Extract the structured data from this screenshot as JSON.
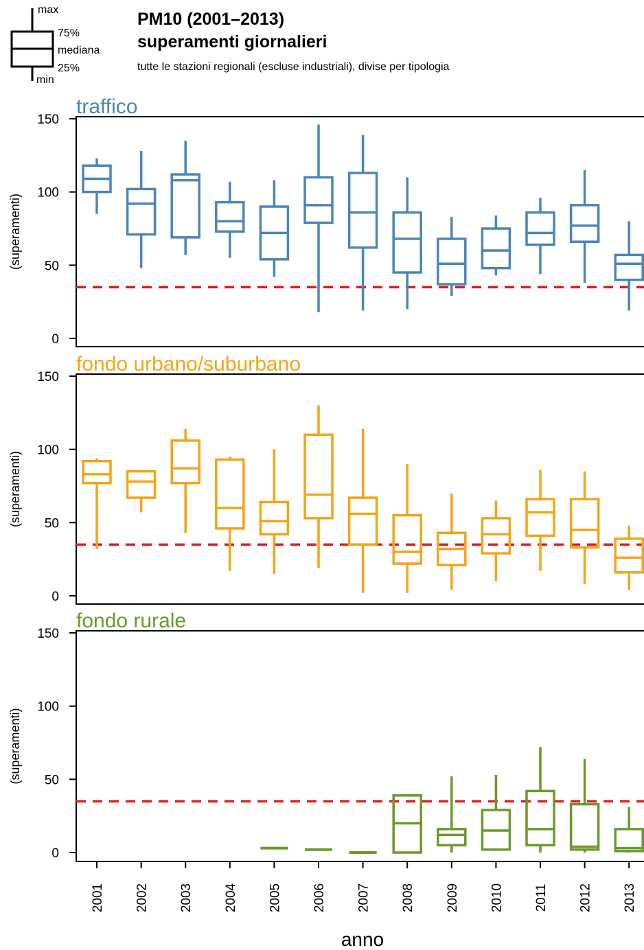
{
  "title_line1": "PM10 (2001–2013)",
  "title_line2": "superamenti giornalieri",
  "subtitle": "tutte le stazioni regionali (escluse industriali), divise per tipologia",
  "legend": {
    "max": "max",
    "q75": "75%",
    "median": "mediana",
    "q25": "25%",
    "min": "min"
  },
  "chart_data": {
    "type": "boxplot",
    "xlabel": "anno",
    "ylabel": "(superamenti)",
    "ylim": [
      0,
      150
    ],
    "yticks": [
      0,
      50,
      100,
      150
    ],
    "categories": [
      "2001",
      "2002",
      "2003",
      "2004",
      "2005",
      "2006",
      "2007",
      "2008",
      "2009",
      "2010",
      "2011",
      "2012",
      "2013"
    ],
    "limit_line": {
      "value": 35,
      "color": "#dd1c1c",
      "style": "dashed"
    },
    "panels": [
      {
        "name": "traffico",
        "color": "#4a86b8",
        "boxes": [
          {
            "min": 85,
            "q1": 100,
            "median": 109,
            "q3": 118,
            "max": 123
          },
          {
            "min": 48,
            "q1": 71,
            "median": 92,
            "q3": 102,
            "max": 128
          },
          {
            "min": 57,
            "q1": 69,
            "median": 108,
            "q3": 112,
            "max": 135
          },
          {
            "min": 55,
            "q1": 73,
            "median": 80,
            "q3": 93,
            "max": 107
          },
          {
            "min": 42,
            "q1": 54,
            "median": 72,
            "q3": 90,
            "max": 108
          },
          {
            "min": 18,
            "q1": 79,
            "median": 91,
            "q3": 110,
            "max": 146
          },
          {
            "min": 19,
            "q1": 62,
            "median": 86,
            "q3": 113,
            "max": 139
          },
          {
            "min": 20,
            "q1": 45,
            "median": 68,
            "q3": 86,
            "max": 110
          },
          {
            "min": 29,
            "q1": 37,
            "median": 51,
            "q3": 68,
            "max": 83
          },
          {
            "min": 43,
            "q1": 48,
            "median": 60,
            "q3": 75,
            "max": 84
          },
          {
            "min": 44,
            "q1": 64,
            "median": 72,
            "q3": 86,
            "max": 96
          },
          {
            "min": 38,
            "q1": 66,
            "median": 77,
            "q3": 91,
            "max": 115
          },
          {
            "min": 19,
            "q1": 40,
            "median": 51,
            "q3": 57,
            "max": 80
          }
        ]
      },
      {
        "name": "fondo urbano/suburbano",
        "color": "#f2a516",
        "boxes": [
          {
            "min": 32,
            "q1": 77,
            "median": 83,
            "q3": 92,
            "max": 94
          },
          {
            "min": 57,
            "q1": 67,
            "median": 78,
            "q3": 85,
            "max": 86
          },
          {
            "min": 43,
            "q1": 77,
            "median": 87,
            "q3": 106,
            "max": 114
          },
          {
            "min": 17,
            "q1": 46,
            "median": 60,
            "q3": 93,
            "max": 95
          },
          {
            "min": 15,
            "q1": 42,
            "median": 51,
            "q3": 64,
            "max": 100
          },
          {
            "min": 19,
            "q1": 53,
            "median": 69,
            "q3": 110,
            "max": 130
          },
          {
            "min": 2,
            "q1": 35,
            "median": 56,
            "q3": 67,
            "max": 114
          },
          {
            "min": 2,
            "q1": 22,
            "median": 30,
            "q3": 55,
            "max": 90
          },
          {
            "min": 4,
            "q1": 21,
            "median": 32,
            "q3": 43,
            "max": 70
          },
          {
            "min": 10,
            "q1": 29,
            "median": 42,
            "q3": 53,
            "max": 65
          },
          {
            "min": 17,
            "q1": 41,
            "median": 57,
            "q3": 66,
            "max": 86
          },
          {
            "min": 8,
            "q1": 33,
            "median": 45,
            "q3": 66,
            "max": 85
          },
          {
            "min": 4,
            "q1": 16,
            "median": 26,
            "q3": 39,
            "max": 48
          }
        ]
      },
      {
        "name": "fondo rurale",
        "color": "#6a9a2b",
        "boxes": [
          null,
          null,
          null,
          null,
          {
            "min": 3,
            "q1": 3,
            "median": 3,
            "q3": 3,
            "max": 3
          },
          {
            "min": 2,
            "q1": 2,
            "median": 2,
            "q3": 2,
            "max": 2
          },
          {
            "min": 0,
            "q1": 0,
            "median": 0,
            "q3": 0,
            "max": 0
          },
          {
            "min": 0,
            "q1": 0,
            "median": 20,
            "q3": 39,
            "max": 39
          },
          {
            "min": 0,
            "q1": 5,
            "median": 12,
            "q3": 16,
            "max": 52
          },
          {
            "min": 1,
            "q1": 2,
            "median": 15,
            "q3": 29,
            "max": 53
          },
          {
            "min": 0,
            "q1": 5,
            "median": 16,
            "q3": 42,
            "max": 72
          },
          {
            "min": 0,
            "q1": 2,
            "median": 4,
            "q3": 33,
            "max": 64
          },
          {
            "min": 0,
            "q1": 1,
            "median": 3,
            "q3": 16,
            "max": 31
          }
        ]
      }
    ]
  }
}
